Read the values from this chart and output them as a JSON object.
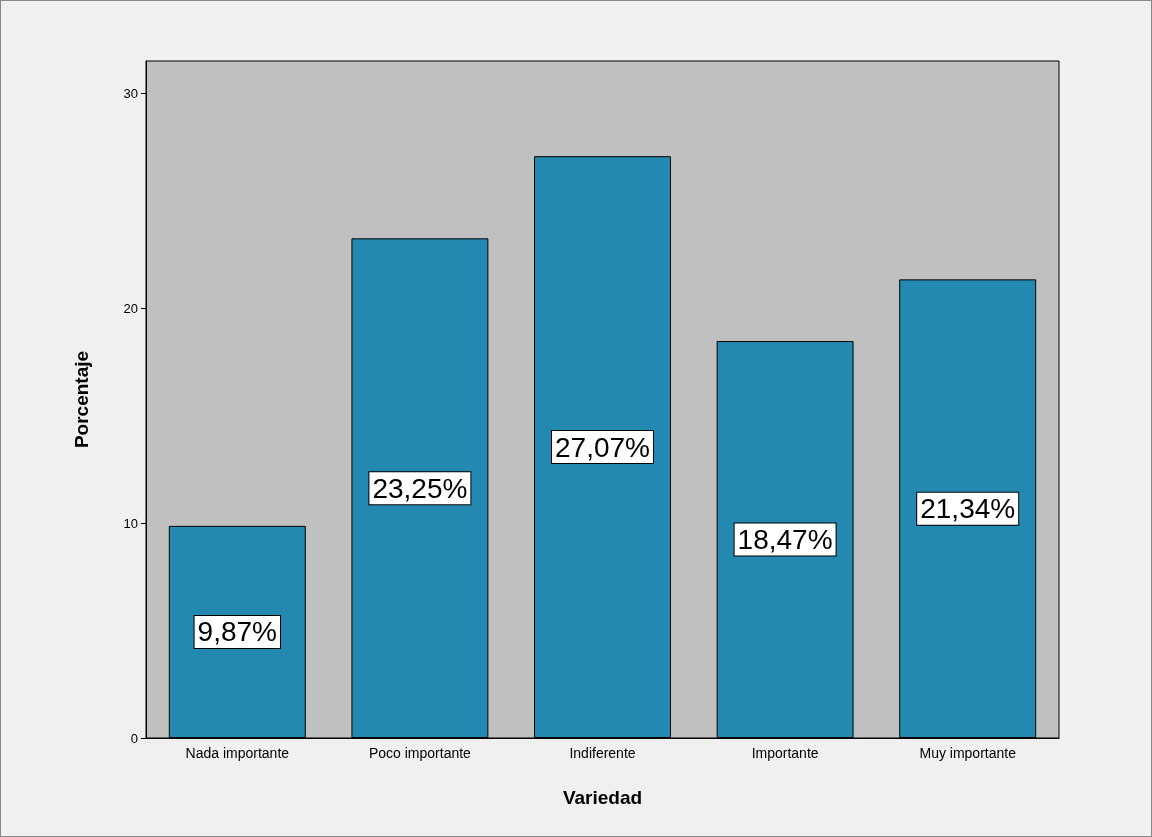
{
  "chart_data": {
    "type": "bar",
    "xlabel": "Variedad",
    "ylabel": "Porcentaje",
    "categories": [
      "Nada importante",
      "Poco importante",
      "Indiferente",
      "Importante",
      "Muy importante"
    ],
    "values": [
      9.87,
      23.25,
      27.07,
      18.47,
      21.34
    ],
    "value_labels": [
      "9,87%",
      "23,25%",
      "27,07%",
      "18,47%",
      "21,34%"
    ],
    "color": "#2489b0",
    "ylim": [
      0,
      31.5
    ],
    "yticks": [
      0,
      10,
      20,
      30
    ],
    "grid": false
  }
}
